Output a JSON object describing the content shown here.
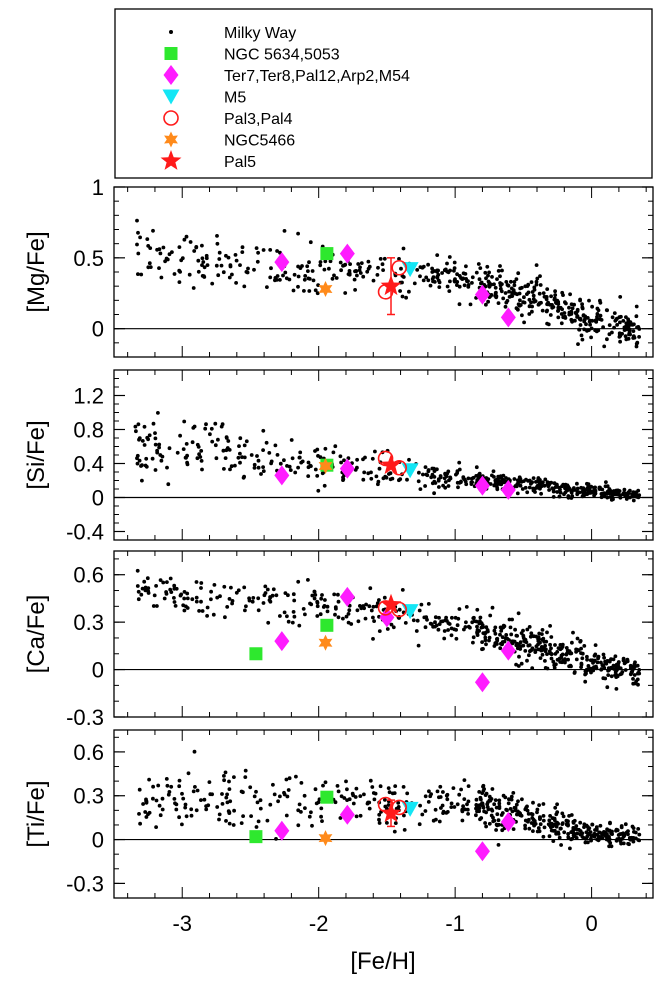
{
  "chart_data": [
    {
      "type": "scatter",
      "id": "mg",
      "ylabel": "[Mg/Fe]",
      "ylim": [
        -0.2,
        1.0
      ],
      "yticks": [
        0,
        0.5,
        1
      ],
      "ytick_labels": [
        "0",
        "0.5",
        "1"
      ],
      "yminor": 0.1,
      "background_seed": 11,
      "background_profile": [
        [
          -3.35,
          0.52,
          0.1
        ],
        [
          -2.5,
          0.45,
          0.08
        ],
        [
          -1.5,
          0.4,
          0.08
        ],
        [
          -1.0,
          0.36,
          0.07
        ],
        [
          -0.5,
          0.24,
          0.08
        ],
        [
          0.0,
          0.06,
          0.07
        ],
        [
          0.35,
          0.0,
          0.05
        ]
      ],
      "series": [
        {
          "name": "NGC 5634,5053",
          "points": [
            [
              -1.94,
              0.53
            ]
          ]
        },
        {
          "name": "Ter7,Ter8,Pal12,Arp2,M54",
          "points": [
            [
              -2.27,
              0.47
            ],
            [
              -1.79,
              0.53
            ],
            [
              -0.8,
              0.24
            ],
            [
              -0.61,
              0.08
            ]
          ]
        },
        {
          "name": "M5",
          "points": [
            [
              -1.33,
              0.42
            ]
          ]
        },
        {
          "name": "Pal3,Pal4",
          "points": [
            [
              -1.51,
              0.26
            ],
            [
              -1.41,
              0.43
            ]
          ]
        },
        {
          "name": "NGC5466",
          "points": [
            [
              -1.95,
              0.28
            ]
          ]
        },
        {
          "name": "Pal5",
          "points": [
            [
              -1.47,
              0.3
            ]
          ],
          "yerr": 0.2
        }
      ]
    },
    {
      "type": "scatter",
      "id": "si",
      "ylabel": "[Si/Fe]",
      "ylim": [
        -0.5,
        1.5
      ],
      "yticks": [
        -0.4,
        0,
        0.4,
        0.8,
        1.2
      ],
      "ytick_labels": [
        "-0.4",
        "0",
        "0.4",
        "0.8",
        "1.2"
      ],
      "yminor": 0.1,
      "background_seed": 23,
      "background_profile": [
        [
          -3.35,
          0.65,
          0.18
        ],
        [
          -2.5,
          0.45,
          0.14
        ],
        [
          -1.5,
          0.32,
          0.1
        ],
        [
          -1.0,
          0.22,
          0.06
        ],
        [
          -0.5,
          0.16,
          0.05
        ],
        [
          0.0,
          0.07,
          0.04
        ],
        [
          0.35,
          0.03,
          0.03
        ]
      ],
      "series": [
        {
          "name": "NGC 5634,5053",
          "points": [
            [
              -1.94,
              0.38
            ]
          ]
        },
        {
          "name": "Ter7,Ter8,Pal12,Arp2,M54",
          "points": [
            [
              -2.27,
              0.26
            ],
            [
              -1.79,
              0.34
            ],
            [
              -0.8,
              0.14
            ],
            [
              -0.61,
              0.09
            ]
          ]
        },
        {
          "name": "M5",
          "points": [
            [
              -1.33,
              0.32
            ]
          ]
        },
        {
          "name": "Pal3,Pal4",
          "points": [
            [
              -1.51,
              0.46
            ],
            [
              -1.41,
              0.35
            ]
          ]
        },
        {
          "name": "NGC5466",
          "points": [
            [
              -1.95,
              0.37
            ]
          ]
        },
        {
          "name": "Pal5",
          "points": [
            [
              -1.47,
              0.38
            ]
          ]
        }
      ]
    },
    {
      "type": "scatter",
      "id": "ca",
      "ylabel": "[Ca/Fe]",
      "ylim": [
        -0.3,
        0.75
      ],
      "yticks": [
        -0.3,
        0,
        0.3,
        0.6
      ],
      "ytick_labels": [
        "-0.3",
        "0",
        "0.3",
        "0.6"
      ],
      "yminor": 0.1,
      "background_seed": 37,
      "background_profile": [
        [
          -3.35,
          0.5,
          0.07
        ],
        [
          -2.5,
          0.45,
          0.06
        ],
        [
          -1.5,
          0.36,
          0.07
        ],
        [
          -1.0,
          0.3,
          0.06
        ],
        [
          -0.5,
          0.16,
          0.06
        ],
        [
          0.0,
          0.04,
          0.05
        ],
        [
          0.35,
          -0.02,
          0.04
        ]
      ],
      "series": [
        {
          "name": "NGC 5634,5053",
          "points": [
            [
              -2.46,
              0.1
            ],
            [
              -1.94,
              0.28
            ]
          ]
        },
        {
          "name": "Ter7,Ter8,Pal12,Arp2,M54",
          "points": [
            [
              -2.27,
              0.18
            ],
            [
              -1.79,
              0.46
            ],
            [
              -1.5,
              0.33
            ],
            [
              -0.8,
              -0.08
            ],
            [
              -0.61,
              0.12
            ]
          ]
        },
        {
          "name": "M5",
          "points": [
            [
              -1.33,
              0.37
            ]
          ]
        },
        {
          "name": "Pal3,Pal4",
          "points": [
            [
              -1.51,
              0.39
            ],
            [
              -1.41,
              0.38
            ]
          ]
        },
        {
          "name": "NGC5466",
          "points": [
            [
              -1.95,
              0.17
            ]
          ]
        },
        {
          "name": "Pal5",
          "points": [
            [
              -1.47,
              0.41
            ]
          ]
        }
      ]
    },
    {
      "type": "scatter",
      "id": "ti",
      "ylabel": "[Ti/Fe]",
      "ylim": [
        -0.4,
        0.75
      ],
      "yticks": [
        -0.3,
        0,
        0.3,
        0.6
      ],
      "ytick_labels": [
        "-0.3",
        "0",
        "0.3",
        "0.6"
      ],
      "yminor": 0.1,
      "xticks": [
        -3,
        -2,
        -1,
        0
      ],
      "xtick_labels": [
        "-3",
        "-2",
        "-1",
        "0"
      ],
      "xlabel": "[Fe/H]",
      "background_seed": 53,
      "background_profile": [
        [
          -3.35,
          0.22,
          0.11
        ],
        [
          -2.5,
          0.3,
          0.1
        ],
        [
          -1.5,
          0.22,
          0.08
        ],
        [
          -1.0,
          0.26,
          0.07
        ],
        [
          -0.5,
          0.17,
          0.07
        ],
        [
          0.0,
          0.04,
          0.04
        ],
        [
          0.35,
          0.02,
          0.03
        ]
      ],
      "series": [
        {
          "name": "NGC 5634,5053",
          "points": [
            [
              -2.46,
              0.02
            ],
            [
              -1.94,
              0.29
            ]
          ]
        },
        {
          "name": "Ter7,Ter8,Pal12,Arp2,M54",
          "points": [
            [
              -2.27,
              0.06
            ],
            [
              -1.79,
              0.17
            ],
            [
              -0.8,
              -0.08
            ],
            [
              -0.61,
              0.12
            ]
          ]
        },
        {
          "name": "M5",
          "points": [
            [
              -1.33,
              0.21
            ]
          ]
        },
        {
          "name": "Pal3,Pal4",
          "points": [
            [
              -1.51,
              0.24
            ],
            [
              -1.41,
              0.22
            ]
          ]
        },
        {
          "name": "NGC5466",
          "points": [
            [
              -1.95,
              0.01
            ]
          ]
        },
        {
          "name": "Pal5",
          "points": [
            [
              -1.47,
              0.18
            ]
          ],
          "yerr": 0.09
        }
      ]
    }
  ],
  "axes": {
    "xlim": [
      -3.5,
      0.45
    ],
    "xminor": 0.2,
    "xlabel": "[Fe/H]"
  },
  "legend": {
    "position": "top",
    "entries": [
      {
        "label": "Milky Way",
        "marker": "dot",
        "color": "#000000"
      },
      {
        "label": "NGC 5634,5053",
        "marker": "square",
        "color": "#2ee82e"
      },
      {
        "label": "Ter7,Ter8,Pal12,Arp2,M54",
        "marker": "diamond",
        "color": "#ff1cff"
      },
      {
        "label": "M5",
        "marker": "triangle-down",
        "color": "#14e6f5"
      },
      {
        "label": "Pal3,Pal4",
        "marker": "circle-open",
        "color": "#ff1a1a"
      },
      {
        "label": "NGC5466",
        "marker": "star6",
        "color": "#ff8a1a"
      },
      {
        "label": "Pal5",
        "marker": "star5",
        "color": "#ff1a1a"
      }
    ]
  }
}
